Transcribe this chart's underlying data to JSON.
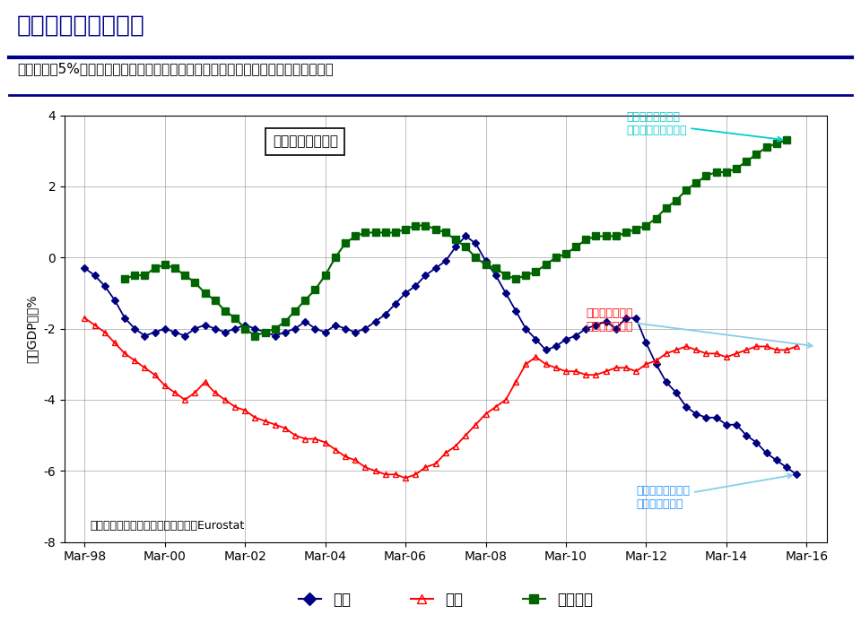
{
  "title": "英国の経常赤字問題",
  "subtitle": "経済規模比5%を超える経常赤字。ユーロ圏の内需低迷がその背景。米赤字は縮小。",
  "chart_title": "英米欧の経常収支",
  "source_note": "（出所）英統計局、米経済分析局、Eurostat",
  "ylabel": "名目GDP比；%",
  "ylim": [
    -8,
    4
  ],
  "yticks": [
    -8,
    -6,
    -4,
    -2,
    0,
    2,
    4
  ],
  "xtick_labels": [
    "Mar-98",
    "Mar-00",
    "Mar-02",
    "Mar-04",
    "Mar-06",
    "Mar-08",
    "Mar-10",
    "Mar-12",
    "Mar-14",
    "Mar-16"
  ],
  "xtick_positions": [
    0,
    8,
    16,
    24,
    32,
    40,
    48,
    56,
    64,
    72
  ],
  "legend_labels": [
    "英国",
    "米国",
    "ユーロ圏"
  ],
  "annotation_euro": "拡大の一途を辿る\nユーロ圏の経常黒字",
  "annotation_us": "抑制されている\n米国の経常赤字",
  "annotation_uk": "拡大の一途を辿る\n英国の経常赤字",
  "title_color": "#00008B",
  "subtitle_color": "#000000",
  "uk_color": "#000080",
  "us_color": "#FF0000",
  "euro_color": "#006400",
  "annotation_euro_color": "#00CED1",
  "annotation_us_color": "#FF0000",
  "annotation_uk_color": "#1E90FF",
  "arrow_color": "#87CEEB",
  "uk_y": [
    -0.3,
    -0.5,
    -0.8,
    -1.2,
    -1.7,
    -2.0,
    -2.2,
    -2.1,
    -2.0,
    -2.1,
    -2.2,
    -2.0,
    -1.9,
    -2.0,
    -2.1,
    -2.0,
    -1.9,
    -2.0,
    -2.1,
    -2.2,
    -2.1,
    -2.0,
    -1.8,
    -2.0,
    -2.1,
    -1.9,
    -2.0,
    -2.1,
    -2.0,
    -1.8,
    -1.6,
    -1.3,
    -1.0,
    -0.8,
    -0.5,
    -0.3,
    -0.1,
    0.3,
    0.6,
    0.4,
    -0.1,
    -0.5,
    -1.0,
    -1.5,
    -2.0,
    -2.3,
    -2.6,
    -2.5,
    -2.3,
    -2.2,
    -2.0,
    -1.9,
    -1.8,
    -2.0,
    -1.7,
    -1.7,
    -2.4,
    -3.0,
    -3.5,
    -3.8,
    -4.2,
    -4.4,
    -4.5,
    -4.5,
    -4.7,
    -4.7,
    -5.0,
    -5.2,
    -5.5,
    -5.7,
    -5.9,
    -6.1
  ],
  "us_y": [
    -1.7,
    -1.9,
    -2.1,
    -2.4,
    -2.7,
    -2.9,
    -3.1,
    -3.3,
    -3.6,
    -3.8,
    -4.0,
    -3.8,
    -3.5,
    -3.8,
    -4.0,
    -4.2,
    -4.3,
    -4.5,
    -4.6,
    -4.7,
    -4.8,
    -5.0,
    -5.1,
    -5.1,
    -5.2,
    -5.4,
    -5.6,
    -5.7,
    -5.9,
    -6.0,
    -6.1,
    -6.1,
    -6.2,
    -6.1,
    -5.9,
    -5.8,
    -5.5,
    -5.3,
    -5.0,
    -4.7,
    -4.4,
    -4.2,
    -4.0,
    -3.5,
    -3.0,
    -2.8,
    -3.0,
    -3.1,
    -3.2,
    -3.2,
    -3.3,
    -3.3,
    -3.2,
    -3.1,
    -3.1,
    -3.2,
    -3.0,
    -2.9,
    -2.7,
    -2.6,
    -2.5,
    -2.6,
    -2.7,
    -2.7,
    -2.8,
    -2.7,
    -2.6,
    -2.5,
    -2.5,
    -2.6,
    -2.6,
    -2.5
  ],
  "euro_y": [
    -0.6,
    -0.5,
    -0.5,
    -0.3,
    -0.2,
    -0.3,
    -0.5,
    -0.7,
    -1.0,
    -1.2,
    -1.5,
    -1.7,
    -2.0,
    -2.2,
    -2.1,
    -2.0,
    -1.8,
    -1.5,
    -1.2,
    -0.9,
    -0.5,
    0.0,
    0.4,
    0.6,
    0.7,
    0.7,
    0.7,
    0.7,
    0.8,
    0.9,
    0.9,
    0.8,
    0.7,
    0.5,
    0.3,
    0.0,
    -0.2,
    -0.3,
    -0.5,
    -0.6,
    -0.5,
    -0.4,
    -0.2,
    0.0,
    0.1,
    0.3,
    0.5,
    0.6,
    0.6,
    0.6,
    0.7,
    0.8,
    0.9,
    1.1,
    1.4,
    1.6,
    1.9,
    2.1,
    2.3,
    2.4,
    2.4,
    2.5,
    2.7,
    2.9,
    3.1,
    3.2,
    3.3
  ],
  "euro_x_start": 4
}
